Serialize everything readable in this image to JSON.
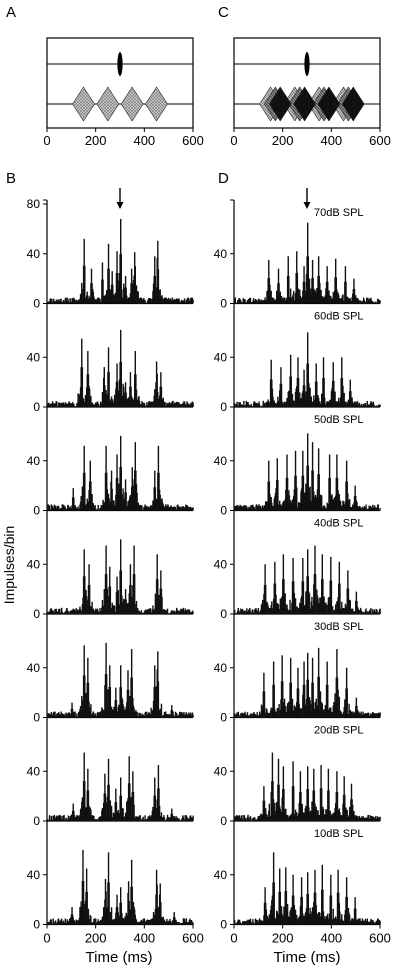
{
  "figure": {
    "panel_labels": [
      "A",
      "B",
      "C",
      "D"
    ],
    "ylabel": "Impulses/bin",
    "xlabel_left": "Time (ms)",
    "xlabel_right": "Time (ms)"
  },
  "chart_data": [
    {
      "type": "diagram",
      "panel": "A",
      "description_hidden": true,
      "xlim": [
        0,
        600
      ],
      "x_ticks": [
        "0",
        "200",
        "400",
        "600"
      ],
      "tracks": [
        {
          "name": "probe",
          "bursts": [
            {
              "center": 300,
              "width": 20
            }
          ]
        },
        {
          "name": "masker",
          "bursts": [
            {
              "center": 150,
              "width": 90
            },
            {
              "center": 250,
              "width": 90
            },
            {
              "center": 350,
              "width": 90
            },
            {
              "center": 450,
              "width": 90
            }
          ]
        }
      ]
    },
    {
      "type": "diagram",
      "panel": "C",
      "xlim": [
        0,
        600
      ],
      "x_ticks": [
        "0",
        "200",
        "400",
        "600"
      ],
      "tracks": [
        {
          "name": "probe",
          "bursts": [
            {
              "center": 300,
              "width": 20
            }
          ]
        },
        {
          "name": "masker",
          "bursts": [
            {
              "center": 150,
              "width": 90
            },
            {
              "center": 250,
              "width": 90
            },
            {
              "center": 350,
              "width": 90
            },
            {
              "center": 450,
              "width": 90
            },
            {
              "center": 170,
              "width": 90
            },
            {
              "center": 270,
              "width": 90
            },
            {
              "center": 370,
              "width": 90
            },
            {
              "center": 470,
              "width": 90
            },
            {
              "center": 190,
              "width": 90
            },
            {
              "center": 290,
              "width": 90
            },
            {
              "center": 390,
              "width": 90
            },
            {
              "center": 490,
              "width": 90
            }
          ]
        }
      ]
    },
    {
      "type": "bar",
      "panel": "B",
      "xlim": [
        0,
        600
      ],
      "ylim": [
        0,
        80
      ],
      "x_ticks": [
        "0",
        "200",
        "400",
        "600"
      ],
      "subplots": [
        {
          "peaks": [
            [
              300,
              68
            ],
            [
              285,
              42
            ],
            [
              150,
              52
            ],
            [
              180,
              28
            ],
            [
              250,
              48
            ],
            [
              225,
              33
            ],
            [
              345,
              28
            ],
            [
              358,
              45
            ],
            [
              452,
              55
            ],
            [
              440,
              38
            ],
            [
              320,
              22
            ],
            [
              265,
              26
            ]
          ],
          "arrow": 300,
          "y_ticks": [
            "0",
            "40",
            "80"
          ]
        },
        {
          "peaks": [
            [
              300,
              62
            ],
            [
              285,
              35
            ],
            [
              140,
              55
            ],
            [
              165,
              45
            ],
            [
              250,
              48
            ],
            [
              232,
              35
            ],
            [
              340,
              28
            ],
            [
              360,
              45
            ],
            [
              448,
              40
            ],
            [
              465,
              28
            ],
            [
              320,
              20
            ]
          ],
          "y_ticks": [
            "0",
            "40"
          ]
        },
        {
          "peaks": [
            [
              300,
              60
            ],
            [
              285,
              45
            ],
            [
              150,
              52
            ],
            [
              175,
              40
            ],
            [
              240,
              52
            ],
            [
              262,
              35
            ],
            [
              348,
              38
            ],
            [
              360,
              55
            ],
            [
              455,
              52
            ],
            [
              440,
              32
            ],
            [
              105,
              18
            ],
            [
              320,
              25
            ]
          ],
          "y_ticks": [
            "0",
            "40"
          ]
        },
        {
          "peaks": [
            [
              300,
              60
            ],
            [
              285,
              30
            ],
            [
              150,
              52
            ],
            [
              170,
              40
            ],
            [
              240,
              55
            ],
            [
              255,
              38
            ],
            [
              355,
              55
            ],
            [
              340,
              40
            ],
            [
              450,
              48
            ],
            [
              465,
              35
            ],
            [
              320,
              20
            ]
          ],
          "y_ticks": [
            "0",
            "40"
          ]
        },
        {
          "peaks": [
            [
              150,
              58
            ],
            [
              165,
              48
            ],
            [
              240,
              60
            ],
            [
              255,
              42
            ],
            [
              345,
              55
            ],
            [
              330,
              38
            ],
            [
              452,
              58
            ],
            [
              440,
              42
            ],
            [
              300,
              42
            ],
            [
              280,
              24
            ],
            [
              100,
              12
            ],
            [
              510,
              10
            ]
          ],
          "y_ticks": [
            "0",
            "40"
          ]
        },
        {
          "peaks": [
            [
              150,
              55
            ],
            [
              165,
              42
            ],
            [
              250,
              50
            ],
            [
              235,
              38
            ],
            [
              335,
              52
            ],
            [
              350,
              40
            ],
            [
              455,
              45
            ],
            [
              440,
              35
            ],
            [
              300,
              35
            ],
            [
              280,
              26
            ],
            [
              105,
              14
            ],
            [
              510,
              10
            ]
          ],
          "y_ticks": [
            "0",
            "40"
          ]
        },
        {
          "peaks": [
            [
              145,
              60
            ],
            [
              160,
              45
            ],
            [
              250,
              58
            ],
            [
              238,
              40
            ],
            [
              345,
              52
            ],
            [
              332,
              38
            ],
            [
              448,
              48
            ],
            [
              462,
              36
            ],
            [
              300,
              30
            ],
            [
              285,
              24
            ],
            [
              100,
              14
            ],
            [
              520,
              10
            ]
          ],
          "y_ticks": [
            "0",
            "40"
          ]
        }
      ]
    },
    {
      "type": "bar",
      "panel": "D",
      "xlim": [
        0,
        600
      ],
      "ylim": [
        0,
        80
      ],
      "x_ticks": [
        "0",
        "200",
        "400",
        "600"
      ],
      "subplots": [
        {
          "label": "70dB SPL",
          "peaks": [
            [
              300,
              65
            ],
            [
              285,
              30
            ],
            [
              140,
              35
            ],
            [
              180,
              28
            ],
            [
              220,
              38
            ],
            [
              255,
              42
            ],
            [
              320,
              35
            ],
            [
              345,
              38
            ],
            [
              380,
              30
            ],
            [
              415,
              36
            ],
            [
              455,
              30
            ],
            [
              490,
              20
            ]
          ],
          "arrow": 300,
          "y_ticks": [
            "0",
            "40"
          ]
        },
        {
          "label": "60dB SPL",
          "peaks": [
            [
              300,
              60
            ],
            [
              285,
              30
            ],
            [
              150,
              38
            ],
            [
              190,
              32
            ],
            [
              230,
              42
            ],
            [
              260,
              40
            ],
            [
              335,
              35
            ],
            [
              365,
              40
            ],
            [
              405,
              36
            ],
            [
              440,
              40
            ],
            [
              475,
              22
            ]
          ],
          "y_ticks": [
            "0",
            "40"
          ]
        },
        {
          "label": "50dB SPL",
          "peaks": [
            [
              300,
              62
            ],
            [
              280,
              48
            ],
            [
              140,
              40
            ],
            [
              175,
              42
            ],
            [
              215,
              45
            ],
            [
              250,
              48
            ],
            [
              320,
              55
            ],
            [
              345,
              50
            ],
            [
              390,
              45
            ],
            [
              420,
              45
            ],
            [
              460,
              40
            ],
            [
              495,
              20
            ]
          ],
          "y_ticks": [
            "0",
            "40"
          ]
        },
        {
          "label": "40dB SPL",
          "peaks": [
            [
              300,
              52
            ],
            [
              280,
              45
            ],
            [
              125,
              40
            ],
            [
              165,
              42
            ],
            [
              200,
              48
            ],
            [
              240,
              45
            ],
            [
              330,
              55
            ],
            [
              360,
              48
            ],
            [
              395,
              46
            ],
            [
              430,
              42
            ],
            [
              465,
              35
            ],
            [
              500,
              18
            ]
          ],
          "y_ticks": [
            "0",
            "40"
          ]
        },
        {
          "label": "30dB SPL",
          "peaks": [
            [
              300,
              52
            ],
            [
              285,
              45
            ],
            [
              120,
              36
            ],
            [
              160,
              45
            ],
            [
              195,
              50
            ],
            [
              230,
              48
            ],
            [
              260,
              40
            ],
            [
              320,
              48
            ],
            [
              345,
              56
            ],
            [
              380,
              45
            ],
            [
              420,
              55
            ],
            [
              460,
              40
            ],
            [
              500,
              16
            ]
          ],
          "y_ticks": [
            "0",
            "40"
          ]
        },
        {
          "label": "20dB SPL",
          "peaks": [
            [
              155,
              55
            ],
            [
              180,
              50
            ],
            [
              200,
              44
            ],
            [
              240,
              48
            ],
            [
              270,
              40
            ],
            [
              300,
              44
            ],
            [
              325,
              42
            ],
            [
              355,
              45
            ],
            [
              385,
              42
            ],
            [
              420,
              40
            ],
            [
              450,
              36
            ],
            [
              480,
              30
            ],
            [
              120,
              28
            ]
          ],
          "y_ticks": [
            "0",
            "40"
          ]
        },
        {
          "label": "10dB SPL",
          "peaks": [
            [
              160,
              58
            ],
            [
              185,
              45
            ],
            [
              210,
              46
            ],
            [
              240,
              40
            ],
            [
              275,
              38
            ],
            [
              300,
              42
            ],
            [
              330,
              44
            ],
            [
              360,
              48
            ],
            [
              395,
              40
            ],
            [
              425,
              44
            ],
            [
              460,
              38
            ],
            [
              495,
              22
            ],
            [
              125,
              30
            ]
          ],
          "y_ticks": [
            "0",
            "40"
          ]
        }
      ]
    }
  ]
}
